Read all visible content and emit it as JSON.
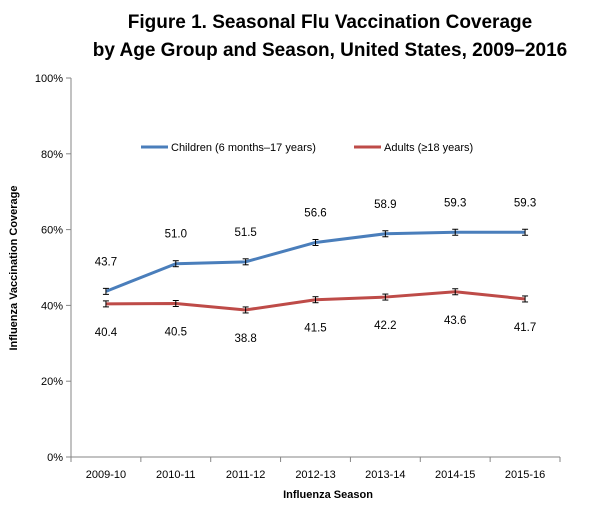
{
  "chart_data": {
    "type": "line",
    "title_line1": "Figure 1. Seasonal Flu Vaccination Coverage",
    "title_line2": "by Age Group and Season, United States, 2009–2016",
    "xlabel": "Influenza Season",
    "ylabel": "Influenza Vaccination Coverage",
    "categories": [
      "2009-10",
      "2010-11",
      "2011-12",
      "2012-13",
      "2013-14",
      "2014-15",
      "2015-16"
    ],
    "ylim": [
      0,
      100
    ],
    "yticks": [
      "0%",
      "20%",
      "40%",
      "60%",
      "80%",
      "100%"
    ],
    "ytick_values": [
      0,
      20,
      40,
      60,
      80,
      100
    ],
    "grid": false,
    "legend_position": "top-center",
    "error_bars": true,
    "series": [
      {
        "name": "Children (6 months–17 years)",
        "color": "#4a7ebb",
        "values": [
          43.7,
          51.0,
          51.5,
          56.6,
          58.9,
          59.3,
          59.3
        ],
        "labels": [
          "43.7",
          "51.0",
          "51.5",
          "56.6",
          "58.9",
          "59.3",
          "59.3"
        ],
        "label_position": "above"
      },
      {
        "name": "Adults (≥18 years)",
        "color": "#be4b48",
        "values": [
          40.4,
          40.5,
          38.8,
          41.5,
          42.2,
          43.6,
          41.7
        ],
        "labels": [
          "40.4",
          "40.5",
          "38.8",
          "41.5",
          "42.2",
          "43.6",
          "41.7"
        ],
        "label_position": "below"
      }
    ]
  }
}
